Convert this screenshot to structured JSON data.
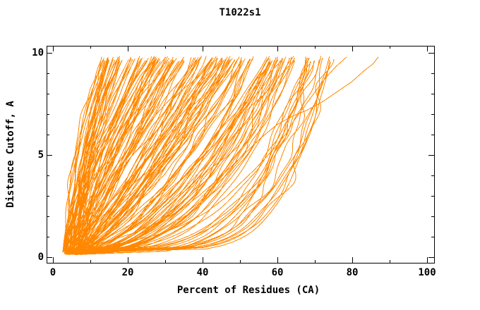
{
  "chart_data": {
    "type": "line",
    "title": "T1022s1",
    "xlabel": "Percent of Residues (CA)",
    "ylabel": "Distance Cutoff, A",
    "xlim": [
      0,
      100
    ],
    "ylim": [
      0,
      10
    ],
    "x_major_ticks": [
      0,
      20,
      40,
      60,
      80,
      100
    ],
    "x_minor_ticks": [
      10,
      30,
      50,
      70,
      90
    ],
    "x_tick_labels": [
      "0",
      "20",
      "40",
      "60",
      "80",
      "100"
    ],
    "y_major_ticks": [
      0,
      5,
      10
    ],
    "y_minor_ticks": [
      1,
      2,
      3,
      4,
      6,
      7,
      8,
      9
    ],
    "y_tick_labels": [
      "0",
      "5",
      "10"
    ],
    "grid": false,
    "legend": "none",
    "background": "#ffffff",
    "axis_color": "#000000",
    "line_color": "#ff8800",
    "content_note": "Fan of ~170 overlapping per-model accuracy curves: percent of CA residues under each distance cutoff",
    "curve_fan": {
      "seed": 12,
      "count": 168,
      "y_start_range": [
        0.12,
        0.37
      ],
      "y_top_range": [
        9.55,
        9.85
      ],
      "x_start_range": [
        2.5,
        8.0
      ],
      "x_top_range": [
        13,
        74
      ],
      "shape_p_best": 0.17,
      "shape_p_worst": 2.1,
      "wiggle_amp_range": [
        0.3,
        1.3
      ]
    },
    "envelope_right": [
      [
        33,
        0.5
      ],
      [
        48,
        1.0
      ],
      [
        51,
        1.1
      ],
      [
        57,
        1.6
      ],
      [
        61,
        2.0
      ],
      [
        66,
        3.0
      ],
      [
        69,
        4.5
      ],
      [
        71,
        6.0
      ],
      [
        73,
        8.0
      ],
      [
        74,
        9.8
      ]
    ],
    "envelope_left": [
      [
        3.5,
        0.3
      ],
      [
        4,
        1.0
      ],
      [
        4.5,
        3.0
      ],
      [
        5,
        5.0
      ],
      [
        8,
        8.0
      ],
      [
        13,
        9.8
      ]
    ],
    "outlier_curves": [
      [
        [
          4,
          0.25
        ],
        [
          9,
          0.5
        ],
        [
          15,
          0.8
        ],
        [
          22,
          1.2
        ],
        [
          28,
          1.7
        ],
        [
          34,
          2.3
        ],
        [
          39,
          3.0
        ],
        [
          44,
          3.8
        ],
        [
          48,
          4.5
        ],
        [
          52,
          5.2
        ],
        [
          56,
          5.9
        ],
        [
          60,
          6.5
        ],
        [
          64,
          6.9
        ],
        [
          68,
          7.2
        ],
        [
          72,
          7.6
        ],
        [
          76,
          8.1
        ],
        [
          80,
          8.6
        ],
        [
          83,
          9.1
        ],
        [
          85.5,
          9.45
        ],
        [
          87,
          9.8
        ]
      ],
      [
        [
          4.5,
          0.25
        ],
        [
          12,
          0.45
        ],
        [
          20,
          0.75
        ],
        [
          28,
          1.1
        ],
        [
          35,
          1.6
        ],
        [
          41,
          2.2
        ],
        [
          46,
          2.9
        ],
        [
          50,
          3.6
        ],
        [
          54,
          4.3
        ],
        [
          57,
          4.9
        ],
        [
          60,
          5.5
        ],
        [
          62.5,
          6.1
        ],
        [
          64.5,
          6.7
        ],
        [
          66.5,
          7.2
        ],
        [
          68.5,
          7.7
        ],
        [
          70.5,
          8.2
        ],
        [
          73,
          8.8
        ],
        [
          75.5,
          9.3
        ],
        [
          78.5,
          9.8
        ]
      ]
    ]
  }
}
